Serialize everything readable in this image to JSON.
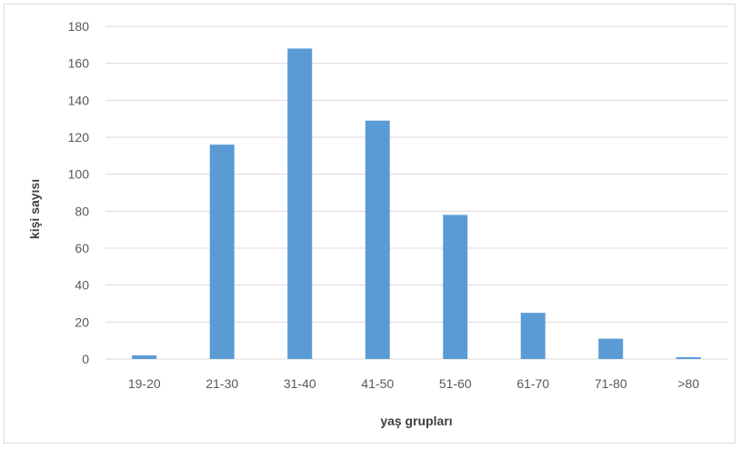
{
  "chart_data": {
    "type": "bar",
    "categories": [
      "19-20",
      "21-30",
      "31-40",
      "41-50",
      "51-60",
      "61-70",
      "71-80",
      ">80"
    ],
    "values": [
      2,
      116,
      168,
      129,
      78,
      25,
      11,
      1
    ],
    "title": "",
    "xlabel": "yaş grupları",
    "ylabel": "kişi sayısı",
    "ylim": [
      0,
      180
    ],
    "yticks": [
      "0",
      "20",
      "40",
      "60",
      "80",
      "100",
      "120",
      "140",
      "160",
      "180"
    ],
    "grid": true,
    "bar_color": "#5B9BD5",
    "grid_color": "#d9d9d9"
  }
}
